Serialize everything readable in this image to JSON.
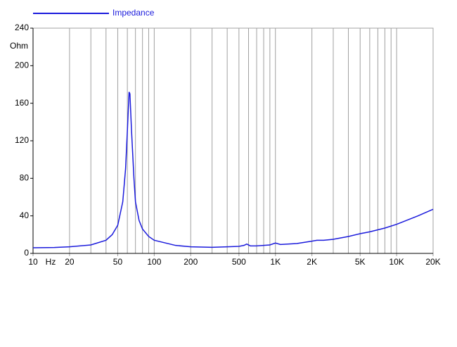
{
  "chart_data": {
    "type": "line",
    "x_unit": "Hz",
    "y_axis_label": "Ohm",
    "log_x": true,
    "grid": true,
    "x": [
      10,
      15,
      20,
      30,
      40,
      45,
      50,
      55,
      58,
      60,
      62,
      63,
      65,
      68,
      70,
      75,
      80,
      90,
      100,
      150,
      200,
      300,
      400,
      500,
      550,
      580,
      620,
      700,
      900,
      1000,
      1100,
      1500,
      2000,
      2200,
      2500,
      3000,
      4000,
      5000,
      6000,
      8000,
      10000,
      15000,
      20000
    ],
    "series": [
      {
        "name": "Impedance",
        "color": "#1a1adc",
        "values": [
          6,
          6.3,
          7,
          9,
          14,
          20,
          30,
          55,
          90,
          130,
          172,
          170,
          130,
          80,
          55,
          35,
          26,
          18,
          14,
          8.5,
          7,
          6.5,
          7,
          7.5,
          8.5,
          10,
          8,
          8,
          9,
          11,
          9.5,
          10.5,
          13,
          14,
          14,
          15,
          18,
          21,
          23,
          27,
          31,
          40,
          47
        ]
      }
    ],
    "xlim": [
      10,
      20000
    ],
    "xticks": [
      10,
      20,
      50,
      100,
      200,
      500,
      {
        "value": 1000,
        "label": "1K"
      },
      {
        "value": 2000,
        "label": "2K"
      },
      {
        "value": 5000,
        "label": "5K"
      },
      {
        "value": 10000,
        "label": "10K"
      },
      {
        "value": 20000,
        "label": "20K"
      }
    ],
    "xminor": [
      30,
      40,
      60,
      70,
      80,
      90,
      300,
      400,
      600,
      700,
      800,
      900,
      3000,
      4000,
      6000,
      7000,
      8000,
      9000
    ],
    "ylim": [
      0,
      240
    ],
    "yticks": [
      0,
      40,
      80,
      120,
      160,
      200,
      240
    ]
  }
}
